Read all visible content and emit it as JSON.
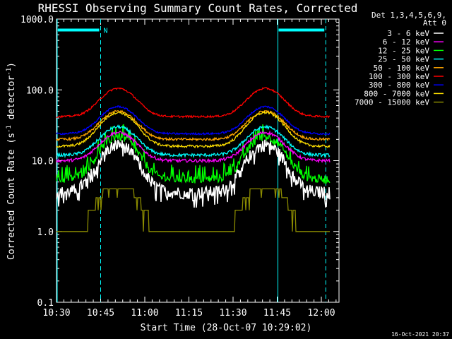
{
  "page": {
    "stamp": "16-Oct-2021 20:37"
  },
  "chart_data": {
    "type": "line",
    "title": "RHESSI Observing Summary Count Rates, Corrected",
    "xlabel": "Start Time (28-Oct-07 10:29:02)",
    "ylabel_main": "Corrected Count Rate (s",
    "ylabel_sup1": "-1",
    "ylabel_mid": " detector",
    "ylabel_sup2": "-1",
    "ylabel_end": ")",
    "y_scale": "log",
    "ylim": [
      0.1,
      1000
    ],
    "xlim_minutes": [
      0,
      96
    ],
    "x_ticks": [
      {
        "t": 0,
        "label": "10:30"
      },
      {
        "t": 15,
        "label": "10:45"
      },
      {
        "t": 30,
        "label": "11:00"
      },
      {
        "t": 45,
        "label": "11:15"
      },
      {
        "t": 60,
        "label": "11:30"
      },
      {
        "t": 75,
        "label": "11:45"
      },
      {
        "t": 90,
        "label": "12:00"
      }
    ],
    "y_ticks": [
      {
        "v": 0.1,
        "label": "0.1"
      },
      {
        "v": 1,
        "label": "1.0"
      },
      {
        "v": 10,
        "label": "10.0"
      },
      {
        "v": 100,
        "label": "100.0"
      },
      {
        "v": 1000,
        "label": "1000.0"
      }
    ],
    "legend_header": [
      "Det 1,3,4,5,6,9,",
      "Att 0"
    ],
    "legend_position": "right",
    "series": [
      {
        "name": "3 - 6 keV",
        "color": "#ffffff",
        "base": 3.6,
        "peak": 17,
        "noise": 0.2
      },
      {
        "name": "6 - 12 keV",
        "color": "#ff00ff",
        "base": 10,
        "peak": 25,
        "noise": 0.05
      },
      {
        "name": "12 - 25 keV",
        "color": "#00ff00",
        "base": 5.5,
        "peak": 22,
        "noise": 0.14
      },
      {
        "name": "25 - 50 keV",
        "color": "#00ffff",
        "base": 12,
        "peak": 30,
        "noise": 0.05
      },
      {
        "name": "50 - 100 keV",
        "color": "#ffa500",
        "base": 20,
        "peak": 50,
        "noise": 0.04
      },
      {
        "name": "100 - 300 keV",
        "color": "#ff0000",
        "base": 42,
        "peak": 105,
        "noise": 0.03
      },
      {
        "name": "300 - 800 keV",
        "color": "#0000ff",
        "base": 24,
        "peak": 58,
        "noise": 0.03
      },
      {
        "name": "800 - 7000 keV",
        "color": "#ffe000",
        "base": 16,
        "peak": 48,
        "noise": 0.04
      },
      {
        "name": "7000 - 15000 keV",
        "color": "#8b8b00",
        "base": 1.0,
        "peak": 4,
        "noise": 0.0
      }
    ],
    "peaks_minutes": [
      21,
      71
    ],
    "saa_bars": [
      {
        "start": 0,
        "end": 15,
        "value": 700,
        "label": "N"
      },
      {
        "start": 75,
        "end": 91.5,
        "value": 700,
        "label": ""
      }
    ],
    "vlines_solid": [
      0,
      75
    ],
    "vlines_dashed": [
      15,
      91.5
    ],
    "vline_color": "#00ffff"
  }
}
